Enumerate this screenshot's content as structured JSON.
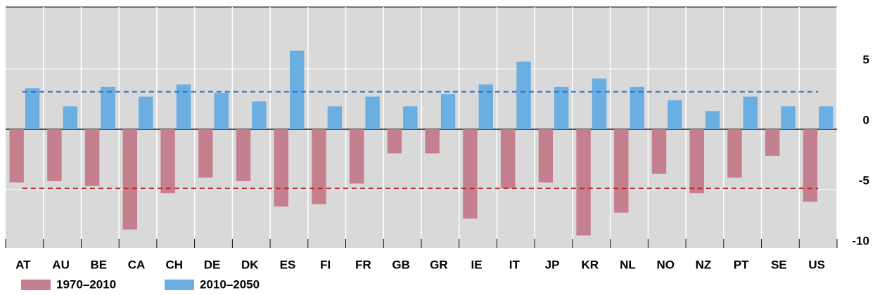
{
  "chart_data": {
    "type": "bar",
    "categories": [
      "AT",
      "AU",
      "BE",
      "CA",
      "CH",
      "DE",
      "DK",
      "ES",
      "FI",
      "FR",
      "GB",
      "GR",
      "IE",
      "IT",
      "JP",
      "KR",
      "NL",
      "NO",
      "NZ",
      "PT",
      "SE",
      "US"
    ],
    "series": [
      {
        "name": "1970–2010",
        "color": "#c4808e",
        "values": [
          -4.4,
          -4.3,
          -4.7,
          -8.3,
          -5.3,
          -4.0,
          -4.3,
          -6.4,
          -6.2,
          -4.5,
          -2.0,
          -2.0,
          -7.4,
          -4.9,
          -4.4,
          -8.8,
          -6.9,
          -3.7,
          -5.3,
          -4.0,
          -2.2,
          -6.0
        ],
        "mean": -4.9
      },
      {
        "name": "2010–2050",
        "color": "#6aaee2",
        "values": [
          3.4,
          1.9,
          3.5,
          2.7,
          3.7,
          3.0,
          2.3,
          6.5,
          1.9,
          2.7,
          1.9,
          2.9,
          3.7,
          5.6,
          3.5,
          4.2,
          3.5,
          2.4,
          1.5,
          2.7,
          1.9,
          1.9
        ],
        "mean": 3.1
      }
    ],
    "ylim": [
      -10,
      10
    ],
    "yticks": [
      5,
      0,
      -5,
      -10
    ],
    "grid": true
  }
}
